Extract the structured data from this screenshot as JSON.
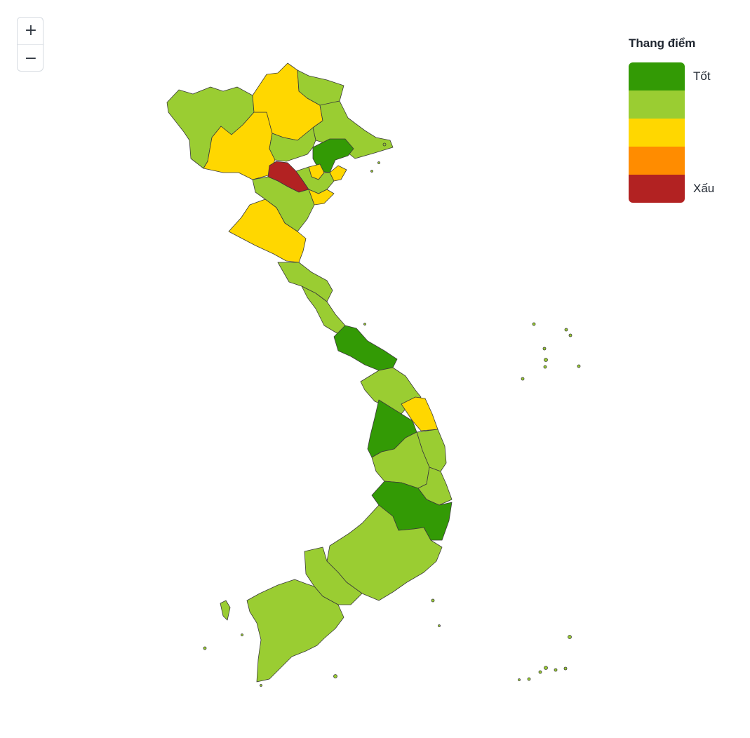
{
  "zoom": {
    "in_label": "+",
    "out_label": "−"
  },
  "legend": {
    "title": "Thang điểm",
    "good_label": "Tốt",
    "bad_label": "Xấu",
    "colors": [
      "#339a05",
      "#9acd32",
      "#ffd700",
      "#ff8c00",
      "#b22222"
    ]
  },
  "map": {
    "country": "Vietnam",
    "level_colors": {
      "good": "#339a05",
      "fairly_good": "#9acd32",
      "average": "#ffd700",
      "poor": "#ff8c00",
      "bad": "#b22222"
    }
  }
}
